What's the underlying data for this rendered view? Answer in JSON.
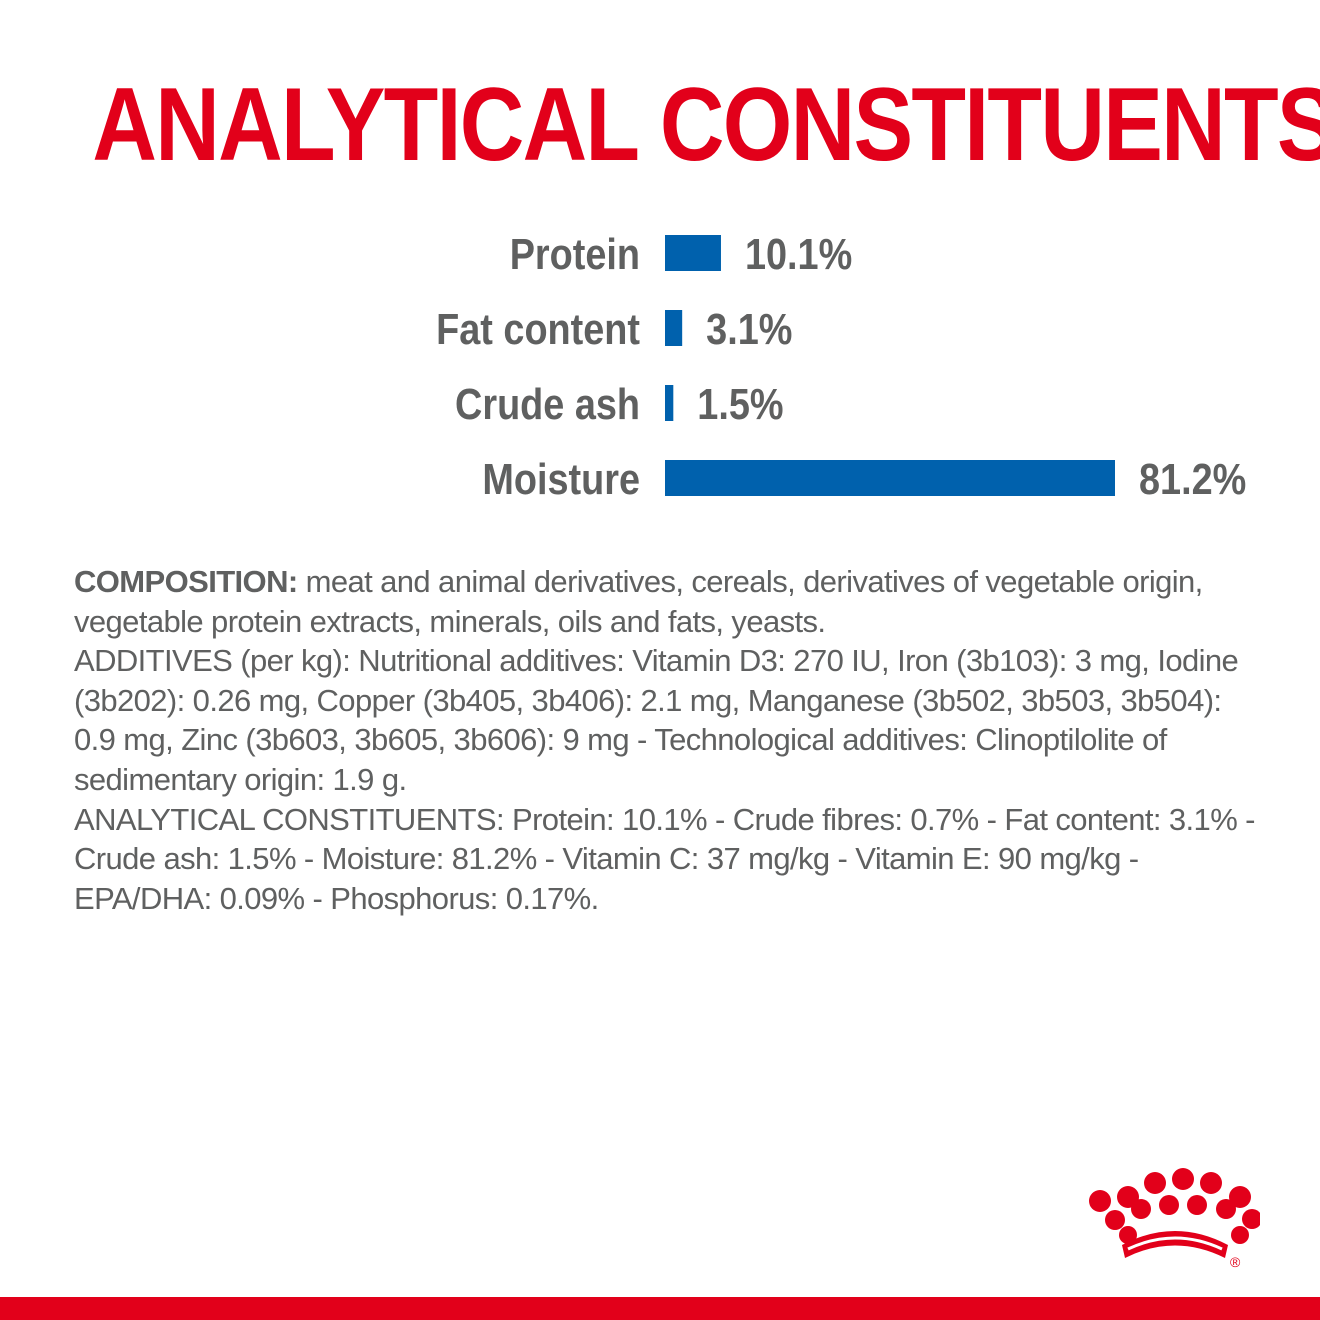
{
  "title": "ANALYTICAL CONSTITUENTS",
  "colors": {
    "brand_red": "#e2001a",
    "bar_blue": "#0061ad",
    "text_gray": "#5f6060"
  },
  "chart_data": {
    "type": "bar",
    "orientation": "horizontal",
    "categories": [
      "Protein",
      "Fat content",
      "Crude ash",
      "Moisture"
    ],
    "values": [
      10.1,
      3.1,
      1.5,
      81.2
    ],
    "value_labels": [
      "10.1%",
      "3.1%",
      "1.5%",
      "81.2%"
    ],
    "unit": "%",
    "xlim": [
      0,
      81.2
    ],
    "grid": false,
    "legend": "none"
  },
  "composition": {
    "lead": "COMPOSITION:",
    "text": " meat and animal derivatives, cereals, derivatives of vegetable origin, vegetable protein extracts, minerals, oils and fats, yeasts.",
    "additives": "ADDITIVES (per kg): Nutritional additives: Vitamin D3: 270 IU, Iron (3b103): 3 mg, Iodine (3b202): 0.26 mg, Copper (3b405, 3b406): 2.1 mg, Manganese (3b502, 3b503, 3b504): 0.9 mg, Zinc (3b603, 3b605, 3b606): 9 mg - Technological additives: Clinoptilolite of sedimentary origin: 1.9 g.",
    "analytical": "ANALYTICAL CONSTITUENTS: Protein: 10.1% - Crude fibres: 0.7% - Fat content: 3.1% - Crude ash: 1.5% - Moisture: 81.2% - Vitamin C: 37 mg/kg - Vitamin E: 90 mg/kg - EPA/DHA: 0.09% - Phosphorus: 0.17%."
  },
  "logo": {
    "icon": "crown-icon",
    "registered_mark": "®"
  }
}
